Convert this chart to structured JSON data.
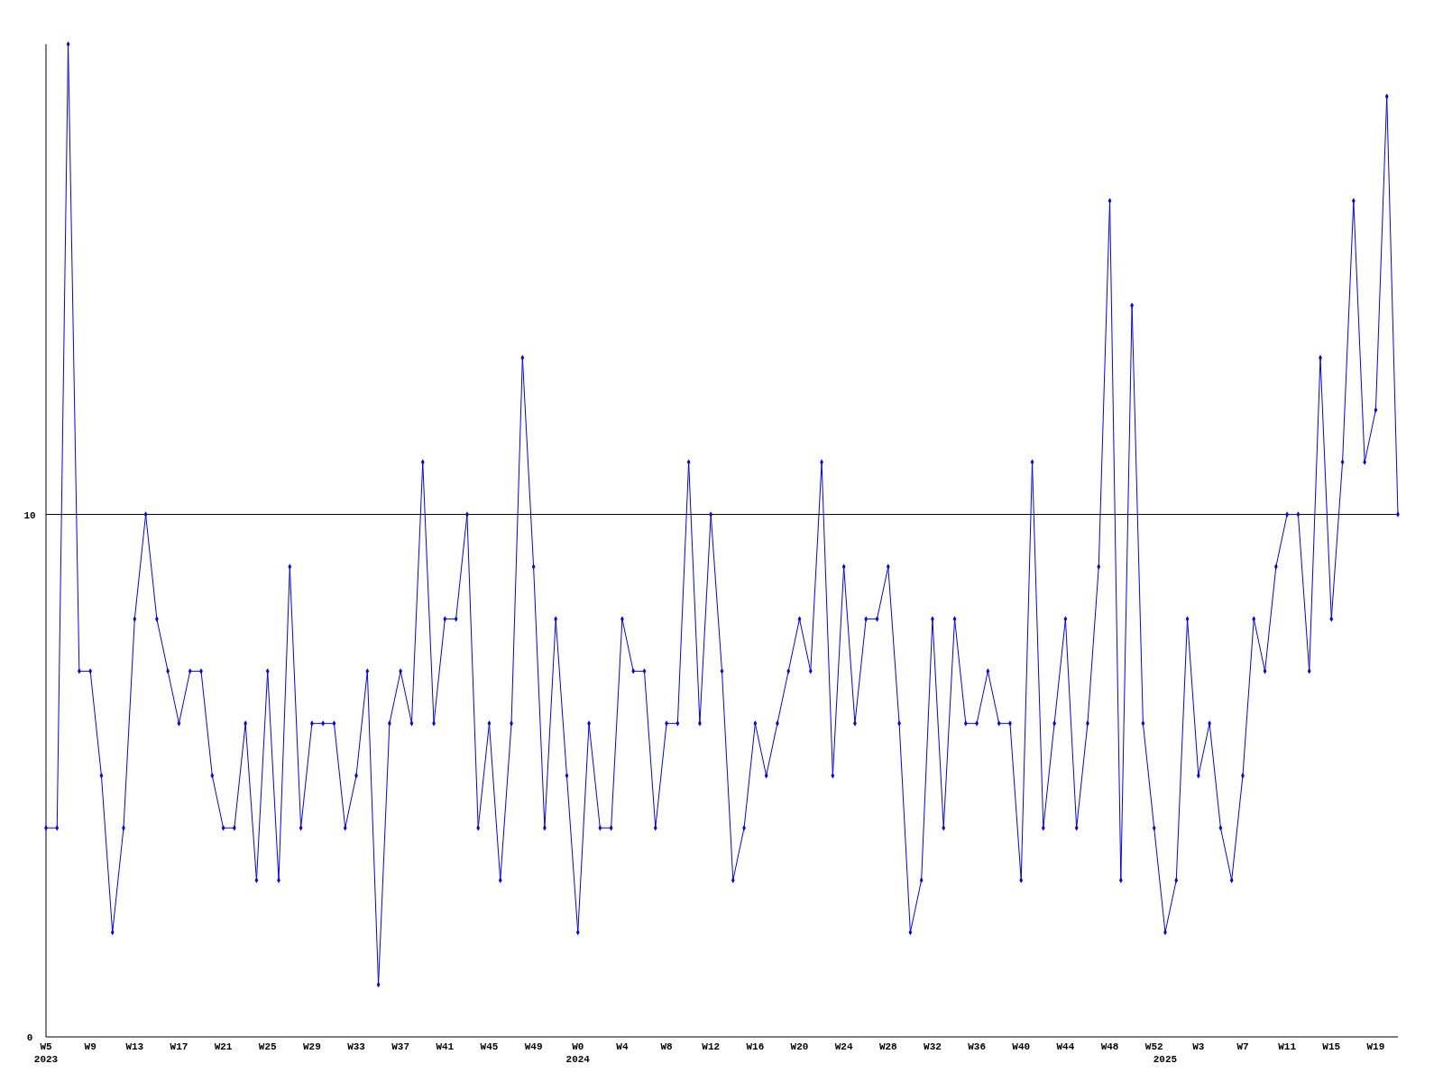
{
  "chart_data": {
    "type": "line",
    "categories": [
      "W5\n2023",
      null,
      null,
      null,
      "W9",
      null,
      null,
      null,
      "W13",
      null,
      null,
      null,
      "W17",
      null,
      null,
      null,
      "W21",
      null,
      null,
      null,
      "W25",
      null,
      null,
      null,
      "W29",
      null,
      null,
      null,
      "W33",
      null,
      null,
      null,
      "W37",
      null,
      null,
      null,
      "W41",
      null,
      null,
      null,
      "W45",
      null,
      null,
      null,
      "W49",
      null,
      null,
      null,
      "W0\n2024",
      null,
      null,
      null,
      "W4",
      null,
      null,
      null,
      "W8",
      null,
      null,
      null,
      "W12",
      null,
      null,
      null,
      "W16",
      null,
      null,
      null,
      "W20",
      null,
      null,
      null,
      "W24",
      null,
      null,
      null,
      "W28",
      null,
      null,
      null,
      "W32",
      null,
      null,
      null,
      "W36",
      null,
      null,
      null,
      "W40",
      null,
      null,
      null,
      "W44",
      null,
      null,
      null,
      "W48",
      null,
      null,
      null,
      "W52",
      "\n2025",
      null,
      null,
      "W3",
      null,
      null,
      null,
      "W7",
      null,
      null,
      null,
      "W11",
      null,
      null,
      null,
      "W15",
      null,
      null,
      null,
      "W19",
      null,
      null
    ],
    "series": [
      {
        "color": "#0000ff",
        "values": [
          4,
          4,
          19,
          7,
          7,
          5,
          2,
          4,
          8,
          10,
          8,
          7,
          6,
          7,
          7,
          5,
          4,
          4,
          6,
          3,
          7,
          3,
          9,
          4,
          6,
          6,
          6,
          4,
          5,
          7,
          1,
          6,
          7,
          6,
          11,
          6,
          8,
          8,
          10,
          4,
          6,
          3,
          6,
          13,
          9,
          4,
          8,
          5,
          2,
          6,
          4,
          4,
          8,
          7,
          7,
          4,
          6,
          6,
          11,
          6,
          10,
          7,
          3,
          4,
          6,
          5,
          6,
          7,
          8,
          7,
          11,
          5,
          9,
          6,
          8,
          8,
          9,
          6,
          2,
          3,
          8,
          4,
          8,
          6,
          6,
          7,
          6,
          6,
          3,
          11,
          4,
          6,
          8,
          4,
          6,
          9,
          16,
          3,
          14,
          6,
          4,
          2,
          3,
          8,
          5,
          6,
          4,
          3,
          5,
          8,
          7,
          9,
          10,
          10,
          7,
          13,
          8,
          11,
          16,
          11,
          12,
          18,
          10
        ]
      }
    ],
    "ylim": [
      0,
      19
    ],
    "yticks": [
      0,
      10
    ],
    "ref_lines": [
      {
        "axis": "y",
        "value": 10,
        "color": "#000000"
      }
    ],
    "marker": "diamond",
    "line_style": "solid"
  }
}
